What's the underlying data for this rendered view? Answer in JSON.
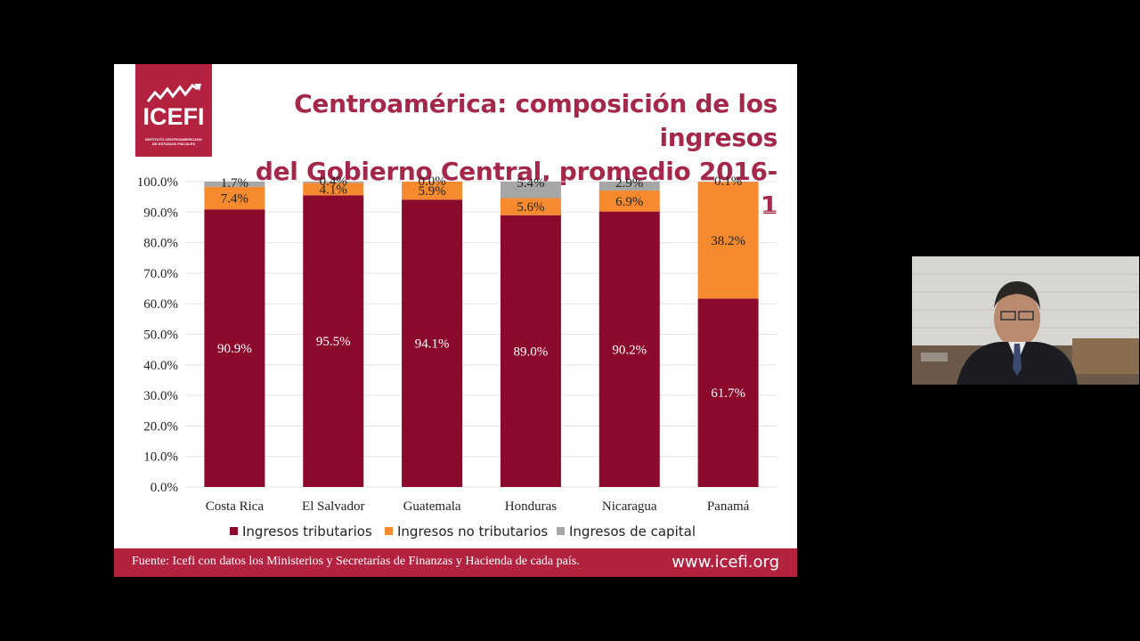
{
  "slide": {
    "title_line1": "Centroamérica: composición de los ingresos",
    "title_line2": "del Gobierno Central, promedio 2016-2021",
    "logo_text": "ICEFI",
    "logo_sub": "INSTITUTO CENTROAMERICANO DE ESTUDIOS FISCALES",
    "footer_source": "Fuente:  Icefi con datos los Ministerios y Secretarías de Finanzas y Hacienda de cada país.",
    "footer_url": "www.icefi.org",
    "brand_color": "#b3223f",
    "title_color": "#a4284a"
  },
  "chart_data": {
    "type": "bar",
    "stacked": true,
    "categories": [
      "Costa Rica",
      "El Salvador",
      "Guatemala",
      "Honduras",
      "Nicaragua",
      "Panamá"
    ],
    "y_ticks": [
      "0.0%",
      "10.0%",
      "20.0%",
      "30.0%",
      "40.0%",
      "50.0%",
      "60.0%",
      "70.0%",
      "80.0%",
      "90.0%",
      "100.0%"
    ],
    "ylim": [
      0,
      100
    ],
    "grid": true,
    "legend_position": "bottom",
    "series": [
      {
        "name": "Ingresos tributarios",
        "color": "#8b0a2b",
        "values": [
          90.9,
          95.5,
          94.1,
          89.0,
          90.2,
          61.7
        ],
        "labels": [
          "90.9%",
          "95.5%",
          "94.1%",
          "89.0%",
          "90.2%",
          "61.7%"
        ]
      },
      {
        "name": "Ingresos no tributarios",
        "color": "#f58a2f",
        "values": [
          7.4,
          4.1,
          5.9,
          5.6,
          6.9,
          38.2
        ],
        "labels": [
          "7.4%",
          "4.1%",
          "5.9%",
          "5.6%",
          "6.9%",
          "38.2%"
        ]
      },
      {
        "name": "Ingresos de capital",
        "color": "#a6a6a6",
        "values": [
          1.7,
          0.4,
          0.0,
          5.4,
          2.9,
          0.1
        ],
        "labels": [
          "1.7%",
          "0.4%",
          "0.0%",
          "5.4%",
          "2.9%",
          "0.1%"
        ]
      }
    ]
  }
}
